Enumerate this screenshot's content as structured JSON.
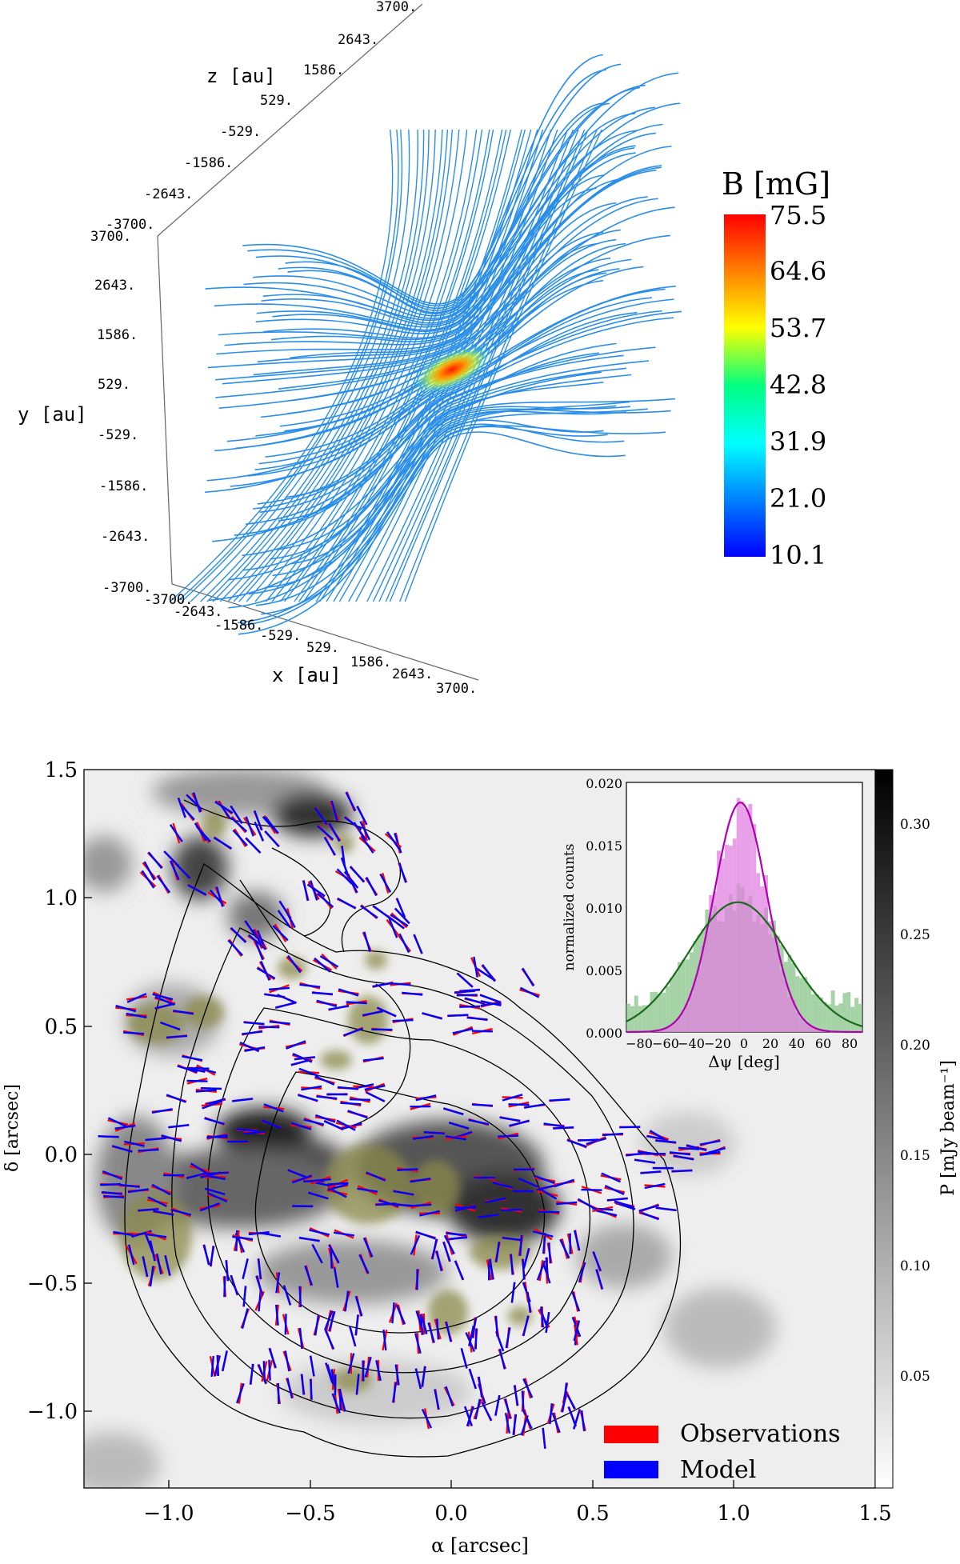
{
  "chart_data": [
    {
      "type": "3d-line",
      "colorbar": {
        "title": "B [mG]",
        "range": [
          10.1,
          75.5
        ],
        "tick_labels": [
          "75.5",
          "64.6",
          "53.7",
          "42.8",
          "31.9",
          "21.0",
          "10.1"
        ],
        "colors": [
          "#0000ff",
          "#00ffff",
          "#ffff00",
          "#ff0000"
        ]
      },
      "axes": {
        "z_label": "z [au]",
        "y_label": "y [au]",
        "x_label": "x [au]",
        "z_ticks": [
          "3700.",
          "2643.",
          "1586.",
          "529.",
          "-529.",
          "-1586.",
          "-2643.",
          "-3700."
        ],
        "y_ticks": [
          "3700.",
          "2643.",
          "1586.",
          "529.",
          "-529.",
          "-1586.",
          "-2643.",
          "-3700."
        ],
        "x_ticks": [
          "-3700.",
          "-2643.",
          "-1586.",
          "-529.",
          "529.",
          "1586.",
          "2643.",
          "3700."
        ],
        "range": [
          -3700,
          3700
        ]
      },
      "field_color": "#2a8ee8",
      "peak_color": "#ff2a00"
    },
    {
      "type": "polarization-map",
      "xlabel": "α [arcsec]",
      "ylabel": "δ [arcsec]",
      "xlim": [
        1.5,
        -1.3
      ],
      "ylim": [
        -1.3,
        1.5
      ],
      "x_ticks": [
        "−1.0",
        "−0.5",
        "0.0",
        "0.5",
        "1.0",
        "1.5"
      ],
      "x_tick_values": [
        -1.0,
        -0.5,
        0.0,
        0.5,
        1.0,
        1.5
      ],
      "y_ticks": [
        "1.5",
        "1.0",
        "0.5",
        "0.0",
        "−0.5",
        "−1.0"
      ],
      "y_tick_values": [
        1.5,
        1.0,
        0.5,
        0.0,
        -0.5,
        -1.0
      ],
      "colorbar": {
        "label": "P [mJy beam⁻¹]",
        "tick_labels": [
          "0.30",
          "0.25",
          "0.20",
          "0.15",
          "0.10",
          "0.05"
        ],
        "tick_values": [
          0.3,
          0.25,
          0.2,
          0.15,
          0.1,
          0.05
        ],
        "range": [
          0.0,
          0.325
        ]
      },
      "legend": {
        "position": "bottom-right",
        "entries": [
          {
            "label": "Observations",
            "color": "#ff0000"
          },
          {
            "label": "Model",
            "color": "#0000ff"
          }
        ]
      },
      "inset": {
        "type": "histogram",
        "position": "top-right",
        "xlabel": "Δψ [deg]",
        "ylabel": "normalized counts",
        "xlim": [
          -90,
          90
        ],
        "ylim": [
          0,
          0.02
        ],
        "x_ticks": [
          "−80",
          "−60",
          "−40",
          "−20",
          "0",
          "20",
          "40",
          "60",
          "80"
        ],
        "y_ticks": [
          "0.020",
          "0.015",
          "0.010",
          "0.005",
          "0.000"
        ],
        "series": [
          {
            "color": "#e080e0",
            "fit_mean": -3,
            "fit_sigma": 20,
            "fit_peak": 0.0184,
            "fit_color": "#b000b0"
          },
          {
            "color": "#80c080",
            "fit_mean": -5,
            "fit_sigma": 38,
            "fit_peak": 0.0104,
            "fit_color": "#1a6a1a"
          }
        ]
      }
    }
  ]
}
